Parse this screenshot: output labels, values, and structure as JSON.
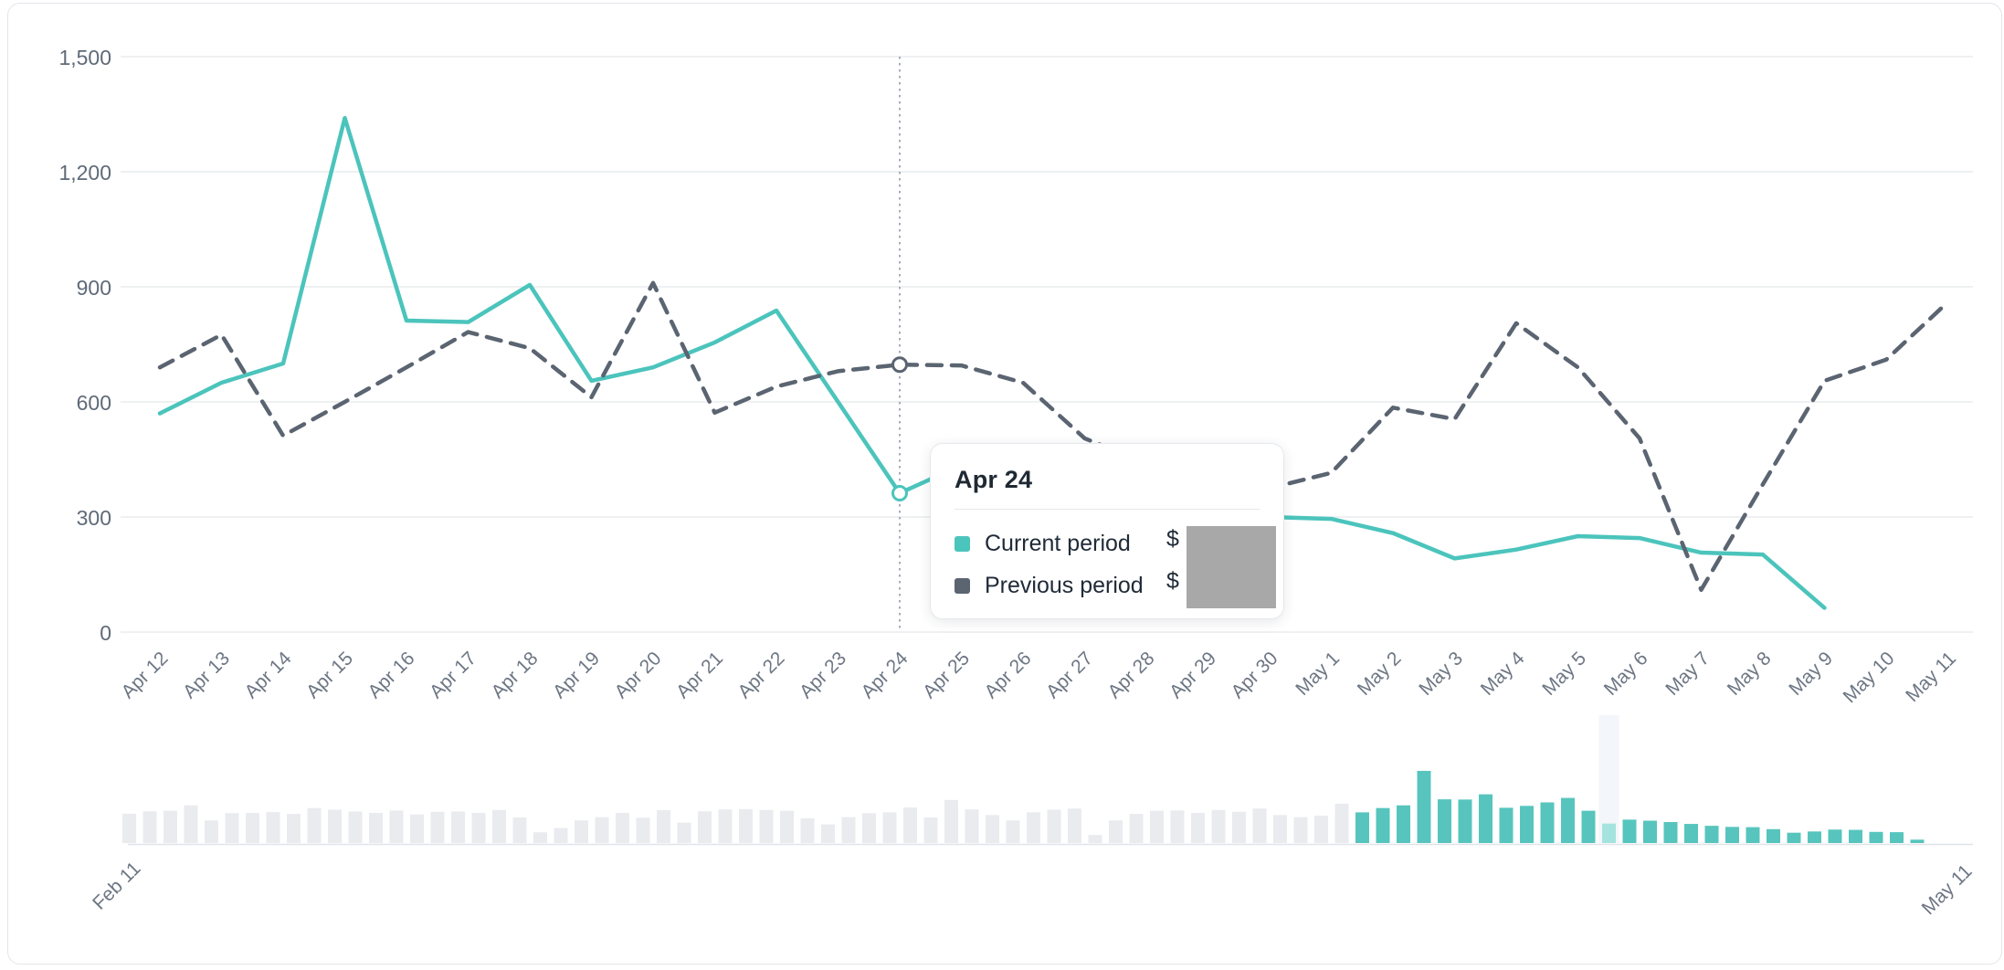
{
  "tooltip": {
    "title": "Apr 24",
    "rows": [
      {
        "label": "Current period",
        "value_prefix": "$",
        "value_redacted": true
      },
      {
        "label": "Previous period",
        "value_prefix": "$",
        "value_redacted": true
      }
    ]
  },
  "colors": {
    "current_period": "#4bc4bc",
    "previous_period": "#5b6471",
    "navigator_bar_in_range": "#57c5bd",
    "navigator_bar_outside_range": "#e9ebef",
    "navigator_highlight_band": "#f3f6fa",
    "navigator_bar_highlighted": "#a5e3df",
    "gridline": "#e9ebee",
    "axis_label": "#6d7684",
    "hover_line": "#a6adb8",
    "redaction_box": "#a8a8a8"
  },
  "chart_data": {
    "type": "line",
    "x": [
      "Apr 12",
      "Apr 13",
      "Apr 14",
      "Apr 15",
      "Apr 16",
      "Apr 17",
      "Apr 18",
      "Apr 19",
      "Apr 20",
      "Apr 21",
      "Apr 22",
      "Apr 23",
      "Apr 24",
      "Apr 25",
      "Apr 26",
      "Apr 27",
      "Apr 28",
      "Apr 29",
      "Apr 30",
      "May 1",
      "May 2",
      "May 3",
      "May 4",
      "May 5",
      "May 6",
      "May 7",
      "May 8",
      "May 9",
      "May 10",
      "May 11"
    ],
    "series": [
      {
        "name": "Current period",
        "style": "solid",
        "color": "#4bc4bc",
        "values": [
          570,
          650,
          700,
          1340,
          812,
          808,
          905,
          655,
          690,
          755,
          838,
          600,
          362,
          435,
          415,
          390,
          355,
          320,
          300,
          295,
          258,
          192,
          215,
          250,
          245,
          207,
          202,
          63,
          null,
          null
        ]
      },
      {
        "name": "Previous period",
        "style": "dashed",
        "color": "#5b6471",
        "values": [
          690,
          775,
          512,
          600,
          690,
          782,
          740,
          612,
          910,
          572,
          640,
          680,
          697,
          695,
          650,
          505,
          440,
          395,
          375,
          415,
          585,
          555,
          805,
          690,
          505,
          110,
          385,
          655,
          710,
          860
        ]
      }
    ],
    "ylim": [
      0,
      1500
    ],
    "y_ticks": [
      "0",
      "300",
      "600",
      "900",
      "1,200",
      "1,500"
    ],
    "grid": true,
    "legend_position": "tooltip",
    "hover": {
      "date": "Apr 24",
      "index": 12,
      "current": 362,
      "previous": 697
    },
    "navigator": {
      "start_label": "Feb 11",
      "end_label": "May 11",
      "bars_outside_range_estimated": [
        545,
        590,
        600,
        700,
        420,
        555,
        560,
        575,
        540,
        650,
        620,
        585,
        560,
        605,
        530,
        580,
        585,
        560,
        615,
        475,
        200,
        280,
        420,
        480,
        560,
        470,
        610,
        380,
        590,
        625,
        630,
        615,
        600,
        460,
        345,
        480,
        555,
        570,
        660,
        475,
        800,
        625,
        520,
        420,
        570,
        620,
        640,
        150,
        420,
        540,
        600,
        605,
        560,
        615,
        580,
        640,
        520,
        480,
        510,
        730
      ],
      "bars_in_range": [
        570,
        650,
        700,
        1340,
        812,
        808,
        905,
        655,
        690,
        755,
        838,
        600,
        362,
        435,
        415,
        390,
        355,
        320,
        300,
        295,
        258,
        192,
        215,
        250,
        245,
        207,
        202,
        63
      ],
      "highlight_index_in_range": 12
    }
  }
}
